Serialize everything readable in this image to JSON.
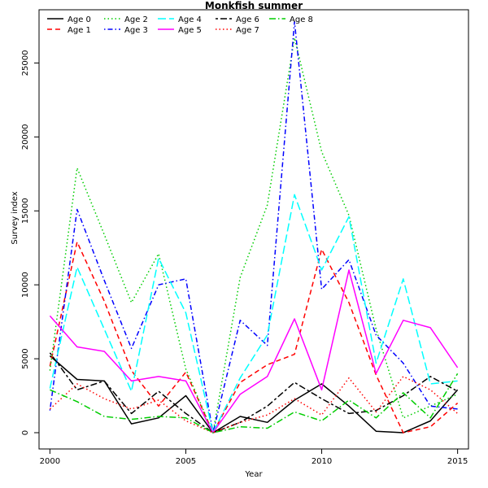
{
  "chart_data": {
    "type": "line",
    "title": "Monkfish summer",
    "xlabel": "Year",
    "ylabel": "Survey index",
    "xlim": [
      1999.6,
      2015.4
    ],
    "ylim": [
      -1100,
      28600
    ],
    "x": [
      2000,
      2001,
      2002,
      2003,
      2004,
      2005,
      2006,
      2007,
      2008,
      2009,
      2010,
      2011,
      2012,
      2013,
      2014,
      2015
    ],
    "x_ticks": [
      "2000",
      "2005",
      "2010",
      "2015"
    ],
    "x_tick_values": [
      2000,
      2005,
      2010,
      2015
    ],
    "y_ticks": [
      "0",
      "5000",
      "10000",
      "15000",
      "20000",
      "25000"
    ],
    "y_tick_values": [
      0,
      5000,
      10000,
      15000,
      20000,
      25000
    ],
    "legend_position": "top-left",
    "series": [
      {
        "name": "Age 0",
        "color": "#000000",
        "dash": "solid",
        "values": [
          5200,
          3600,
          3500,
          600,
          1000,
          2500,
          0,
          1100,
          700,
          2200,
          3300,
          1800,
          100,
          0,
          800,
          2900
        ]
      },
      {
        "name": "Age 1",
        "color": "#ff0000",
        "dash": "dashed",
        "values": [
          4500,
          12900,
          8900,
          4200,
          1800,
          4100,
          0,
          3400,
          4600,
          5300,
          12400,
          8800,
          3900,
          0,
          400,
          2000
        ]
      },
      {
        "name": "Age 2",
        "color": "#00cd00",
        "dash": "dotted",
        "values": [
          4200,
          17900,
          13400,
          8800,
          12100,
          4300,
          0,
          10500,
          15400,
          26700,
          19000,
          14700,
          7000,
          1000,
          1800,
          2600
        ]
      },
      {
        "name": "Age 3",
        "color": "#0000ff",
        "dash": "dotdash",
        "values": [
          1500,
          15100,
          10300,
          5700,
          10000,
          10400,
          0,
          7600,
          5900,
          27800,
          9700,
          11700,
          6600,
          4700,
          1800,
          1600
        ]
      },
      {
        "name": "Age 4",
        "color": "#00ffff",
        "dash": "longdash",
        "values": [
          3000,
          11200,
          7000,
          2800,
          11800,
          8100,
          0,
          3700,
          6600,
          16100,
          11000,
          14600,
          4700,
          10400,
          3300,
          3500
        ]
      },
      {
        "name": "Age 5",
        "color": "#ff00ff",
        "dash": "solid",
        "values": [
          7900,
          5800,
          5500,
          3500,
          3800,
          3500,
          0,
          2600,
          3800,
          7700,
          2900,
          11000,
          4000,
          7600,
          7100,
          4400
        ]
      },
      {
        "name": "Age 6",
        "color": "#000000",
        "dash": "twodash",
        "values": [
          5400,
          2900,
          3500,
          1300,
          2800,
          1300,
          0,
          700,
          1800,
          3400,
          2300,
          1300,
          1500,
          2500,
          3800,
          2800
        ]
      },
      {
        "name": "Age 7",
        "color": "#ff0000",
        "dash": "dotted",
        "values": [
          1600,
          3300,
          2300,
          1600,
          2200,
          800,
          0,
          700,
          1200,
          2300,
          1200,
          3700,
          1400,
          3800,
          2900,
          1300
        ]
      },
      {
        "name": "Age 8",
        "color": "#00cd00",
        "dash": "dashdot",
        "values": [
          2900,
          2100,
          1100,
          900,
          1100,
          1000,
          0,
          400,
          300,
          1400,
          800,
          2200,
          1000,
          2700,
          1000,
          4000
        ]
      }
    ]
  }
}
